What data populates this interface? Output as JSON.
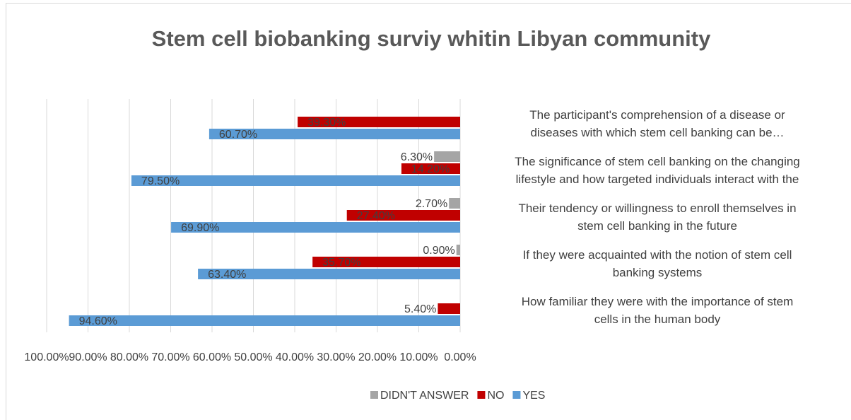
{
  "chart_data": {
    "type": "barh",
    "title": "Stem cell biobanking surviy whitin Libyan community",
    "categories": [
      "The participant's comprehension of a disease or\ndiseases with which stem cell banking can be…",
      "The significance of stem cell banking on the changing\nlifestyle and how targeted individuals interact with the",
      "Their tendency or willingness to enroll themselves in\nstem cell banking in the future",
      "If they were acquainted with the notion of stem cell\nbanking systems",
      "How familiar they were with the importance of stem\ncells in the human body"
    ],
    "series": [
      {
        "name": "DIDN'T ANSWER",
        "color": "#a5a5a5",
        "values": [
          null,
          6.3,
          2.7,
          0.9,
          null
        ],
        "value_labels": [
          null,
          "6.30%",
          "2.70%",
          "0.90%",
          null
        ]
      },
      {
        "name": "NO",
        "color": "#c00000",
        "values": [
          39.3,
          14.2,
          27.4,
          35.7,
          5.4
        ],
        "value_labels": [
          "39.30%",
          "14.20%",
          "27.40%",
          "35.70%",
          "5.40%"
        ]
      },
      {
        "name": "YES",
        "color": "#5b9bd5",
        "values": [
          60.7,
          79.5,
          69.9,
          63.4,
          94.6
        ],
        "value_labels": [
          "60.70%",
          "79.50%",
          "69.90%",
          "63.40%",
          "94.60%"
        ]
      }
    ],
    "xlim": [
      100,
      0
    ],
    "xticks": [
      {
        "value": 100,
        "label": "100.00%"
      },
      {
        "value": 90,
        "label": "90.00%"
      },
      {
        "value": 80,
        "label": "80.00%"
      },
      {
        "value": 70,
        "label": "70.00%"
      },
      {
        "value": 60,
        "label": "60.00%"
      },
      {
        "value": 50,
        "label": "50.00%"
      },
      {
        "value": 40,
        "label": "40.00%"
      },
      {
        "value": 30,
        "label": "30.00%"
      },
      {
        "value": 20,
        "label": "20.00%"
      },
      {
        "value": 10,
        "label": "10.00%"
      },
      {
        "value": 0,
        "label": "0.00%"
      }
    ],
    "grid": true,
    "legend": "bottom"
  }
}
